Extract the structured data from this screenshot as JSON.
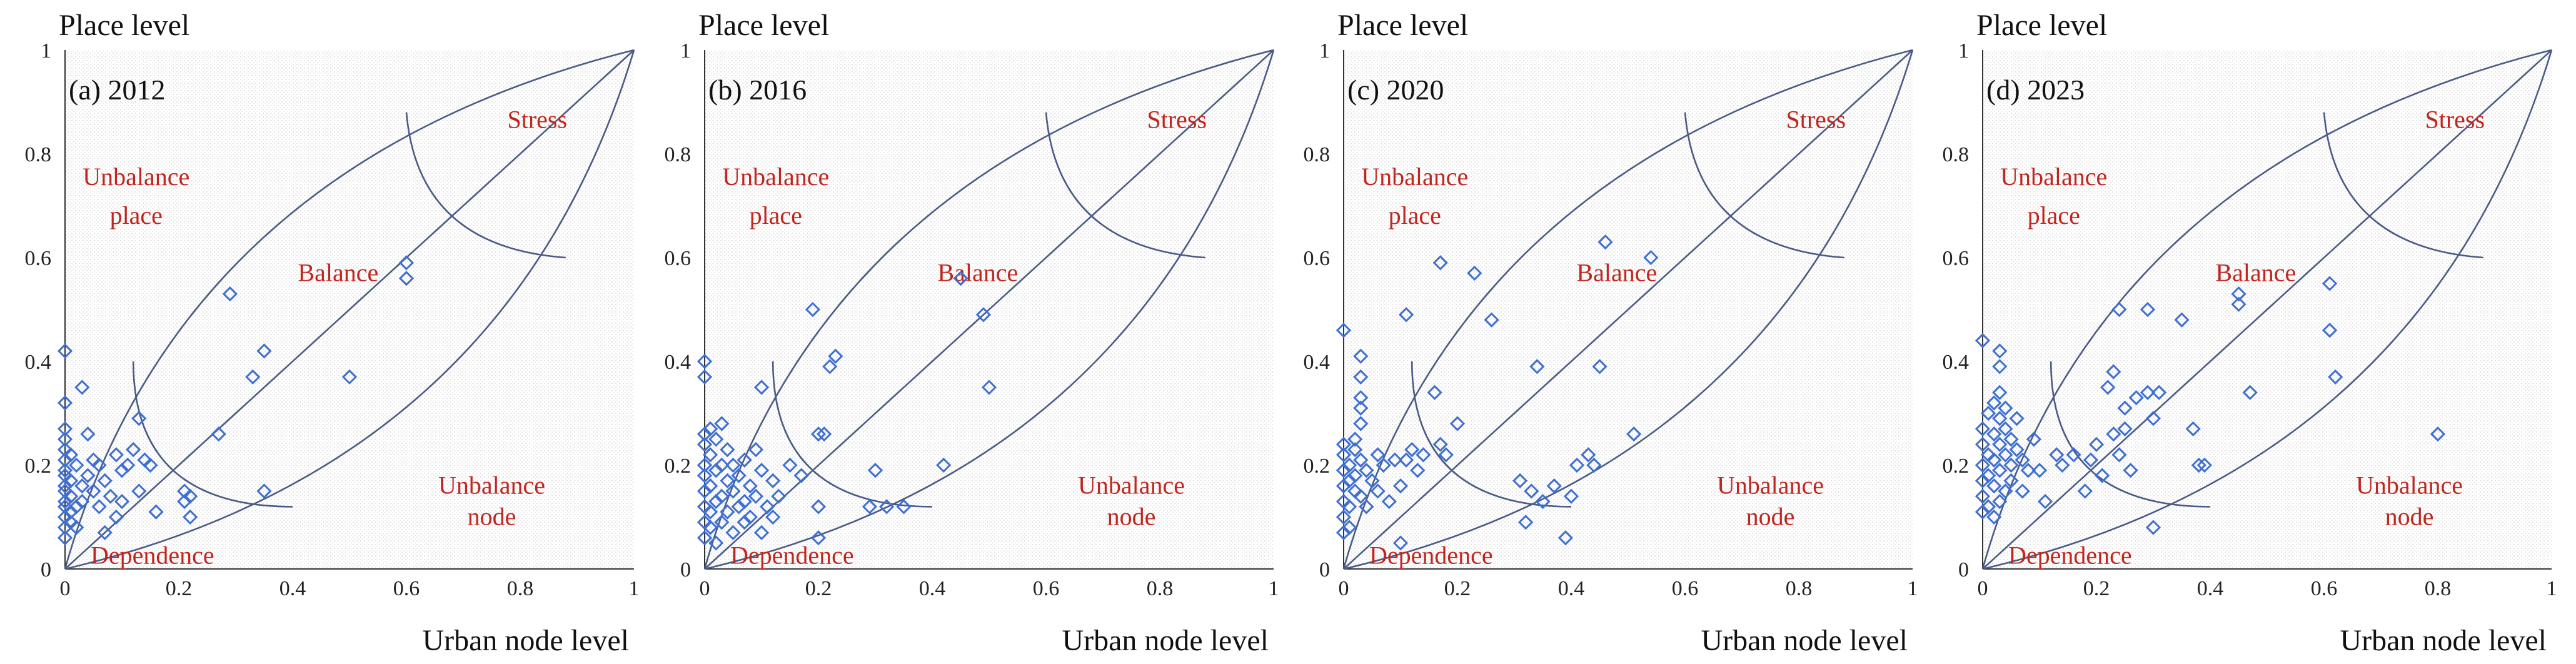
{
  "chart_data": [
    {
      "type": "scatter",
      "panel_label": "(a) 2012",
      "xlabel": "Urban node level",
      "ylabel": "Place level",
      "xlim": [
        0,
        1
      ],
      "ylim": [
        0,
        1
      ],
      "xticks": [
        "0",
        "0.2",
        "0.4",
        "0.6",
        "0.8",
        "1"
      ],
      "yticks": [
        "0",
        "0.2",
        "0.4",
        "0.6",
        "0.8",
        "1"
      ],
      "regions": {
        "unbalance_place": [
          "Unbalance",
          "place"
        ],
        "balance": "Balance",
        "stress": "Stress",
        "unbalance_node": [
          "Unbalance",
          "node"
        ],
        "dependence": "Dependence"
      },
      "points": [
        [
          0,
          0.42
        ],
        [
          0,
          0.32
        ],
        [
          0,
          0.27
        ],
        [
          0,
          0.25
        ],
        [
          0,
          0.23
        ],
        [
          0,
          0.21
        ],
        [
          0,
          0.19
        ],
        [
          0,
          0.18
        ],
        [
          0,
          0.16
        ],
        [
          0,
          0.15
        ],
        [
          0,
          0.13
        ],
        [
          0,
          0.12
        ],
        [
          0,
          0.1
        ],
        [
          0,
          0.08
        ],
        [
          0,
          0.06
        ],
        [
          0.01,
          0.22
        ],
        [
          0.01,
          0.17
        ],
        [
          0.01,
          0.14
        ],
        [
          0.01,
          0.11
        ],
        [
          0.01,
          0.09
        ],
        [
          0.02,
          0.2
        ],
        [
          0.02,
          0.12
        ],
        [
          0.02,
          0.08
        ],
        [
          0.03,
          0.35
        ],
        [
          0.03,
          0.16
        ],
        [
          0.03,
          0.13
        ],
        [
          0.04,
          0.26
        ],
        [
          0.04,
          0.18
        ],
        [
          0.05,
          0.21
        ],
        [
          0.05,
          0.15
        ],
        [
          0.06,
          0.2
        ],
        [
          0.06,
          0.12
        ],
        [
          0.07,
          0.17
        ],
        [
          0.07,
          0.07
        ],
        [
          0.08,
          0.14
        ],
        [
          0.09,
          0.22
        ],
        [
          0.09,
          0.1
        ],
        [
          0.1,
          0.19
        ],
        [
          0.1,
          0.13
        ],
        [
          0.11,
          0.2
        ],
        [
          0.12,
          0.23
        ],
        [
          0.13,
          0.29
        ],
        [
          0.13,
          0.15
        ],
        [
          0.14,
          0.21
        ],
        [
          0.15,
          0.2
        ],
        [
          0.16,
          0.11
        ],
        [
          0.21,
          0.15
        ],
        [
          0.21,
          0.13
        ],
        [
          0.22,
          0.14
        ],
        [
          0.22,
          0.1
        ],
        [
          0.27,
          0.26
        ],
        [
          0.29,
          0.53
        ],
        [
          0.33,
          0.37
        ],
        [
          0.35,
          0.42
        ],
        [
          0.35,
          0.15
        ],
        [
          0.5,
          0.37
        ],
        [
          0.6,
          0.59
        ],
        [
          0.6,
          0.56
        ]
      ]
    },
    {
      "type": "scatter",
      "panel_label": "(b) 2016",
      "xlabel": "Urban node level",
      "ylabel": "Place level",
      "xlim": [
        0,
        1
      ],
      "ylim": [
        0,
        1
      ],
      "xticks": [
        "0",
        "0.2",
        "0.4",
        "0.6",
        "0.8",
        "1"
      ],
      "yticks": [
        "0",
        "0.2",
        "0.4",
        "0.6",
        "0.8",
        "1"
      ],
      "regions": {
        "unbalance_place": [
          "Unbalance",
          "place"
        ],
        "balance": "Balance",
        "stress": "Stress",
        "unbalance_node": [
          "Unbalance",
          "node"
        ],
        "dependence": "Dependence"
      },
      "points": [
        [
          0,
          0.4
        ],
        [
          0,
          0.37
        ],
        [
          0,
          0.26
        ],
        [
          0,
          0.24
        ],
        [
          0,
          0.2
        ],
        [
          0,
          0.18
        ],
        [
          0,
          0.15
        ],
        [
          0,
          0.12
        ],
        [
          0,
          0.09
        ],
        [
          0,
          0.06
        ],
        [
          0.01,
          0.27
        ],
        [
          0.01,
          0.22
        ],
        [
          0.01,
          0.16
        ],
        [
          0.01,
          0.11
        ],
        [
          0.01,
          0.08
        ],
        [
          0.02,
          0.25
        ],
        [
          0.02,
          0.19
        ],
        [
          0.02,
          0.13
        ],
        [
          0.02,
          0.05
        ],
        [
          0.03,
          0.28
        ],
        [
          0.03,
          0.2
        ],
        [
          0.03,
          0.14
        ],
        [
          0.03,
          0.09
        ],
        [
          0.04,
          0.23
        ],
        [
          0.04,
          0.17
        ],
        [
          0.04,
          0.11
        ],
        [
          0.05,
          0.2
        ],
        [
          0.05,
          0.15
        ],
        [
          0.05,
          0.07
        ],
        [
          0.06,
          0.18
        ],
        [
          0.06,
          0.12
        ],
        [
          0.07,
          0.21
        ],
        [
          0.07,
          0.13
        ],
        [
          0.07,
          0.09
        ],
        [
          0.08,
          0.16
        ],
        [
          0.08,
          0.1
        ],
        [
          0.09,
          0.23
        ],
        [
          0.09,
          0.14
        ],
        [
          0.1,
          0.35
        ],
        [
          0.1,
          0.19
        ],
        [
          0.1,
          0.07
        ],
        [
          0.11,
          0.12
        ],
        [
          0.12,
          0.17
        ],
        [
          0.12,
          0.1
        ],
        [
          0.13,
          0.14
        ],
        [
          0.15,
          0.2
        ],
        [
          0.17,
          0.18
        ],
        [
          0.19,
          0.5
        ],
        [
          0.2,
          0.26
        ],
        [
          0.2,
          0.12
        ],
        [
          0.2,
          0.06
        ],
        [
          0.21,
          0.26
        ],
        [
          0.22,
          0.39
        ],
        [
          0.23,
          0.41
        ],
        [
          0.29,
          0.12
        ],
        [
          0.3,
          0.19
        ],
        [
          0.32,
          0.12
        ],
        [
          0.35,
          0.12
        ],
        [
          0.42,
          0.2
        ],
        [
          0.45,
          0.56
        ],
        [
          0.49,
          0.49
        ],
        [
          0.5,
          0.35
        ]
      ]
    },
    {
      "type": "scatter",
      "panel_label": "(c) 2020",
      "xlabel": "Urban node level",
      "ylabel": "Place level",
      "xlim": [
        0,
        1
      ],
      "ylim": [
        0,
        1
      ],
      "xticks": [
        "0",
        "0.2",
        "0.4",
        "0.6",
        "0.8",
        "1"
      ],
      "yticks": [
        "0",
        "0.2",
        "0.4",
        "0.6",
        "0.8",
        "1"
      ],
      "regions": {
        "unbalance_place": [
          "Unbalance",
          "place"
        ],
        "balance": "Balance",
        "stress": "Stress",
        "unbalance_node": [
          "Unbalance",
          "node"
        ],
        "dependence": "Dependence"
      },
      "points": [
        [
          0,
          0.46
        ],
        [
          0,
          0.24
        ],
        [
          0,
          0.22
        ],
        [
          0,
          0.19
        ],
        [
          0,
          0.16
        ],
        [
          0,
          0.13
        ],
        [
          0,
          0.1
        ],
        [
          0,
          0.07
        ],
        [
          0.01,
          0.2
        ],
        [
          0.01,
          0.17
        ],
        [
          0.01,
          0.12
        ],
        [
          0.01,
          0.08
        ],
        [
          0.02,
          0.25
        ],
        [
          0.02,
          0.23
        ],
        [
          0.02,
          0.18
        ],
        [
          0.02,
          0.15
        ],
        [
          0.03,
          0.41
        ],
        [
          0.03,
          0.37
        ],
        [
          0.03,
          0.33
        ],
        [
          0.03,
          0.31
        ],
        [
          0.03,
          0.28
        ],
        [
          0.03,
          0.21
        ],
        [
          0.03,
          0.14
        ],
        [
          0.04,
          0.19
        ],
        [
          0.04,
          0.12
        ],
        [
          0.05,
          0.17
        ],
        [
          0.06,
          0.22
        ],
        [
          0.06,
          0.15
        ],
        [
          0.07,
          0.2
        ],
        [
          0.08,
          0.13
        ],
        [
          0.09,
          0.21
        ],
        [
          0.1,
          0.16
        ],
        [
          0.1,
          0.05
        ],
        [
          0.11,
          0.49
        ],
        [
          0.11,
          0.21
        ],
        [
          0.12,
          0.23
        ],
        [
          0.13,
          0.19
        ],
        [
          0.14,
          0.22
        ],
        [
          0.16,
          0.34
        ],
        [
          0.17,
          0.59
        ],
        [
          0.17,
          0.24
        ],
        [
          0.18,
          0.22
        ],
        [
          0.2,
          0.28
        ],
        [
          0.23,
          0.57
        ],
        [
          0.26,
          0.48
        ],
        [
          0.31,
          0.17
        ],
        [
          0.32,
          0.09
        ],
        [
          0.33,
          0.15
        ],
        [
          0.34,
          0.39
        ],
        [
          0.35,
          0.13
        ],
        [
          0.37,
          0.16
        ],
        [
          0.39,
          0.06
        ],
        [
          0.4,
          0.14
        ],
        [
          0.41,
          0.2
        ],
        [
          0.43,
          0.22
        ],
        [
          0.44,
          0.2
        ],
        [
          0.45,
          0.39
        ],
        [
          0.46,
          0.63
        ],
        [
          0.54,
          0.6
        ],
        [
          0.51,
          0.26
        ]
      ]
    },
    {
      "type": "scatter",
      "panel_label": "(d) 2023",
      "xlabel": "Urban node level",
      "ylabel": "Place level",
      "xlim": [
        0,
        1
      ],
      "ylim": [
        0,
        1
      ],
      "xticks": [
        "0",
        "0.2",
        "0.4",
        "0.6",
        "0.8",
        "1"
      ],
      "yticks": [
        "0",
        "0.2",
        "0.4",
        "0.6",
        "0.8",
        "1"
      ],
      "regions": {
        "unbalance_place": [
          "Unbalance",
          "place"
        ],
        "balance": "Balance",
        "stress": "Stress",
        "unbalance_node": [
          "Unbalance",
          "node"
        ],
        "dependence": "Dependence"
      },
      "points": [
        [
          0,
          0.44
        ],
        [
          0,
          0.27
        ],
        [
          0,
          0.24
        ],
        [
          0,
          0.2
        ],
        [
          0,
          0.17
        ],
        [
          0,
          0.14
        ],
        [
          0,
          0.11
        ],
        [
          0.01,
          0.3
        ],
        [
          0.01,
          0.22
        ],
        [
          0.01,
          0.18
        ],
        [
          0.01,
          0.12
        ],
        [
          0.02,
          0.32
        ],
        [
          0.02,
          0.26
        ],
        [
          0.02,
          0.21
        ],
        [
          0.02,
          0.16
        ],
        [
          0.02,
          0.1
        ],
        [
          0.03,
          0.42
        ],
        [
          0.03,
          0.39
        ],
        [
          0.03,
          0.34
        ],
        [
          0.03,
          0.29
        ],
        [
          0.03,
          0.24
        ],
        [
          0.03,
          0.19
        ],
        [
          0.03,
          0.13
        ],
        [
          0.04,
          0.31
        ],
        [
          0.04,
          0.27
        ],
        [
          0.04,
          0.22
        ],
        [
          0.04,
          0.15
        ],
        [
          0.05,
          0.25
        ],
        [
          0.05,
          0.2
        ],
        [
          0.05,
          0.17
        ],
        [
          0.06,
          0.29
        ],
        [
          0.06,
          0.23
        ],
        [
          0.07,
          0.21
        ],
        [
          0.07,
          0.15
        ],
        [
          0.08,
          0.19
        ],
        [
          0.09,
          0.25
        ],
        [
          0.1,
          0.19
        ],
        [
          0.11,
          0.13
        ],
        [
          0.13,
          0.22
        ],
        [
          0.14,
          0.2
        ],
        [
          0.16,
          0.22
        ],
        [
          0.18,
          0.15
        ],
        [
          0.19,
          0.21
        ],
        [
          0.2,
          0.24
        ],
        [
          0.21,
          0.18
        ],
        [
          0.22,
          0.35
        ],
        [
          0.23,
          0.38
        ],
        [
          0.23,
          0.26
        ],
        [
          0.24,
          0.5
        ],
        [
          0.24,
          0.22
        ],
        [
          0.25,
          0.31
        ],
        [
          0.25,
          0.27
        ],
        [
          0.26,
          0.19
        ],
        [
          0.27,
          0.33
        ],
        [
          0.29,
          0.5
        ],
        [
          0.29,
          0.34
        ],
        [
          0.3,
          0.08
        ],
        [
          0.3,
          0.29
        ],
        [
          0.31,
          0.34
        ],
        [
          0.35,
          0.48
        ],
        [
          0.37,
          0.27
        ],
        [
          0.38,
          0.2
        ],
        [
          0.39,
          0.2
        ],
        [
          0.45,
          0.53
        ],
        [
          0.45,
          0.51
        ],
        [
          0.47,
          0.34
        ],
        [
          0.61,
          0.55
        ],
        [
          0.61,
          0.46
        ],
        [
          0.62,
          0.37
        ],
        [
          0.8,
          0.26
        ]
      ]
    }
  ]
}
